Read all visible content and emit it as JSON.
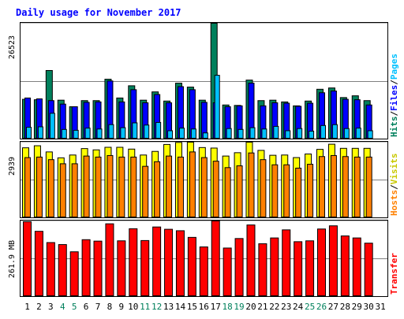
{
  "chart_data": {
    "type": "bar",
    "title": "Daily usage for November 2017",
    "x_labels": [
      "1",
      "2",
      "3",
      "4",
      "5",
      "6",
      "7",
      "8",
      "9",
      "10",
      "11",
      "12",
      "13",
      "14",
      "15",
      "16",
      "17",
      "18",
      "19",
      "20",
      "21",
      "22",
      "23",
      "24",
      "25",
      "26",
      "27",
      "28",
      "29",
      "30",
      "31"
    ],
    "weekend_days": [
      4,
      5,
      11,
      12,
      18,
      19,
      25,
      26
    ],
    "panels": [
      {
        "id": "hits-files-pages",
        "max_label": "26523",
        "max_value": 26523,
        "right_label_parts": [
          "Hits",
          "/",
          "Files",
          "/",
          "Pages"
        ],
        "series": [
          {
            "name": "Hits",
            "color": "#00805c",
            "values": [
              9100,
              9000,
              15700,
              8900,
              7400,
              8800,
              8800,
              13700,
              9400,
              12200,
              8900,
              10800,
              8700,
              12800,
              11900,
              8900,
              26523,
              7800,
              7700,
              13500,
              8800,
              8900,
              8500,
              7600,
              8700,
              11400,
              11700,
              9500,
              9900,
              8800,
              null
            ]
          },
          {
            "name": "Files",
            "color": "#0000ff",
            "values": [
              9400,
              9200,
              8800,
              8000,
              7400,
              8400,
              8500,
              13300,
              8500,
              11300,
              8300,
              10200,
              8300,
              12000,
              11300,
              8400,
              8300,
              7400,
              7600,
              12800,
              7600,
              8300,
              8200,
              7500,
              8200,
              10600,
              11000,
              9100,
              9000,
              7800,
              null
            ]
          },
          {
            "name": "Pages",
            "color": "#00c0ff",
            "values": [
              2700,
              2800,
              5900,
              2200,
              2000,
              2500,
              2300,
              3300,
              2600,
              3700,
              3200,
              3800,
              1900,
              2500,
              2300,
              1400,
              14600,
              2400,
              2200,
              2600,
              2300,
              2900,
              1900,
              2400,
              1800,
              3100,
              3300,
              2400,
              2500,
              1900,
              null
            ]
          }
        ]
      },
      {
        "id": "hosts-visits",
        "max_label": "2939",
        "max_value": 2939,
        "right_label_parts": [
          "Hosts",
          "/",
          "Visits"
        ],
        "series": [
          {
            "name": "Visits",
            "color": "#ffff00",
            "values": [
              2720,
              2800,
              2560,
              2330,
              2440,
              2690,
              2640,
              2740,
              2740,
              2670,
              2440,
              2580,
              2850,
              2930,
              2940,
              2730,
              2710,
              2400,
              2530,
              2939,
              2620,
              2430,
              2440,
              2340,
              2480,
              2660,
              2860,
              2700,
              2700,
              2700,
              null
            ]
          },
          {
            "name": "Hosts",
            "color": "#ff8000",
            "values": [
              2340,
              2360,
              2260,
              2100,
              2100,
              2400,
              2360,
              2420,
              2360,
              2360,
              2000,
              2180,
              2400,
              2360,
              2560,
              2340,
              2200,
              1950,
              2020,
              2520,
              2260,
              2060,
              2060,
              1930,
              2080,
              2380,
              2420,
              2380,
              2360,
              2360,
              null
            ]
          }
        ]
      },
      {
        "id": "transfer",
        "max_label": "261.9 MB",
        "max_value": 261.9,
        "right_label_parts": [
          "Transfer"
        ],
        "series": [
          {
            "name": "Transfer",
            "color": "#ff0000",
            "values": [
              259,
              226,
              187,
              180,
              155,
              197,
              192,
              252,
              193,
              235,
              194,
              241,
              233,
              228,
              205,
              172,
              261.9,
              168,
              201,
              248,
              183,
              203,
              231,
              190,
              193,
              234,
              245,
              210,
              203,
              185,
              null
            ]
          }
        ]
      }
    ]
  }
}
